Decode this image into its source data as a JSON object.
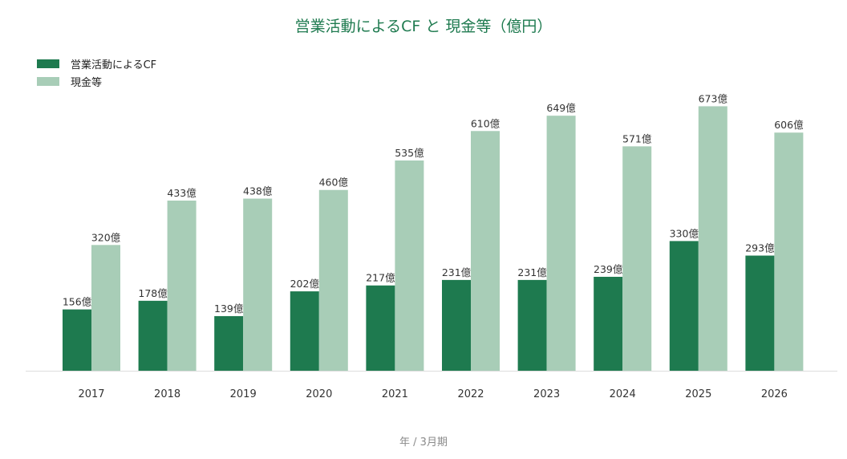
{
  "chart_data": {
    "type": "bar",
    "title": "営業活動によるCF と 現金等（億円）",
    "xlabel": "年 / 3月期",
    "ylabel": "",
    "categories": [
      "2017",
      "2018",
      "2019",
      "2020",
      "2021",
      "2022",
      "2023",
      "2024",
      "2025",
      "2026"
    ],
    "series": [
      {
        "name": "営業活動によるCF",
        "color": "#1e7a4f",
        "values": [
          156,
          178,
          139,
          202,
          217,
          231,
          231,
          239,
          330,
          293
        ]
      },
      {
        "name": "現金等",
        "color": "#a8cdb7",
        "values": [
          320,
          433,
          438,
          460,
          535,
          610,
          649,
          571,
          673,
          606
        ]
      }
    ],
    "value_suffix": "億",
    "grid": false,
    "legend_position": "top-left"
  }
}
